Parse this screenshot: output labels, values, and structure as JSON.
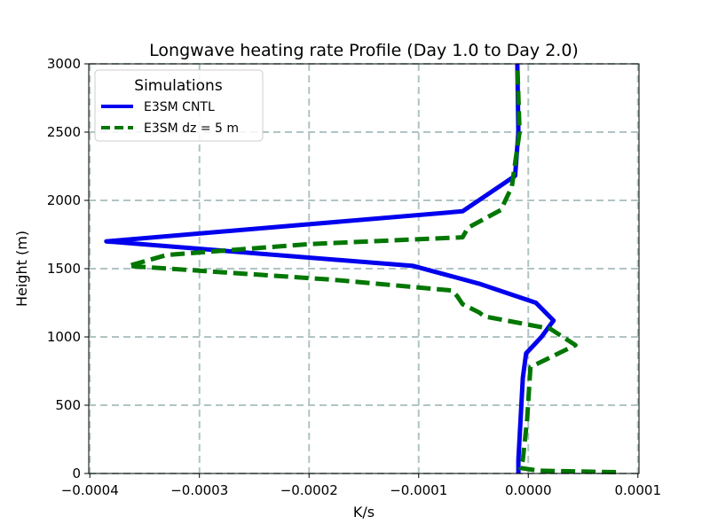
{
  "chart_data": {
    "type": "line",
    "title": "Longwave heating rate Profile (Day 1.0 to Day 2.0)",
    "xlabel": "K/s",
    "ylabel": "Height (m)",
    "xlim": [
      -0.000401,
      0.000101
    ],
    "ylim": [
      0,
      3000
    ],
    "grid": true,
    "x_ticks": [
      -0.0004,
      -0.0003,
      -0.0002,
      -0.0001,
      0.0,
      0.0001
    ],
    "x_tick_labels": [
      "−0.0004",
      "−0.0003",
      "−0.0002",
      "−0.0001",
      "0.0000",
      "0.0001"
    ],
    "y_ticks": [
      0,
      500,
      1000,
      1500,
      2000,
      2500,
      3000
    ],
    "y_tick_labels": [
      "0",
      "500",
      "1000",
      "1500",
      "2000",
      "2500",
      "3000"
    ],
    "legend": {
      "title": "Simulations",
      "position": "upper-left"
    },
    "series": [
      {
        "name": "E3SM CNTL",
        "color": "#0000ee",
        "style": "solid",
        "points": [
          [
            -9e-06,
            0
          ],
          [
            -9e-06,
            100
          ],
          [
            -7e-06,
            400
          ],
          [
            -5e-06,
            700
          ],
          [
            -2e-06,
            880
          ],
          [
            1.2e-05,
            1000
          ],
          [
            2.3e-05,
            1120
          ],
          [
            7e-06,
            1250
          ],
          [
            -4.5e-05,
            1390
          ],
          [
            -0.000105,
            1520
          ],
          [
            -0.000385,
            1700
          ],
          [
            -6e-05,
            1920
          ],
          [
            -1.2e-05,
            2180
          ],
          [
            -9e-06,
            2500
          ],
          [
            -1e-05,
            3000
          ]
        ]
      },
      {
        "name": "E3SM dz = 5 m",
        "color": "#007700",
        "style": "dashed",
        "points": [
          [
            8e-05,
            10
          ],
          [
            1e-05,
            20
          ],
          [
            -7e-06,
            40
          ],
          [
            -5e-06,
            100
          ],
          [
            -1e-06,
            400
          ],
          [
            2e-06,
            780
          ],
          [
            2e-05,
            850
          ],
          [
            4.3e-05,
            940
          ],
          [
            2e-05,
            1060
          ],
          [
            -4e-05,
            1150
          ],
          [
            -4.5e-05,
            1180
          ],
          [
            -6e-05,
            1240
          ],
          [
            -6.5e-05,
            1300
          ],
          [
            -7e-05,
            1340
          ],
          [
            -0.00018,
            1420
          ],
          [
            -0.000365,
            1520
          ],
          [
            -0.00033,
            1600
          ],
          [
            -0.0002,
            1680
          ],
          [
            -6e-05,
            1730
          ],
          [
            -5.5e-05,
            1800
          ],
          [
            -2.5e-05,
            1930
          ],
          [
            -1.5e-05,
            2100
          ],
          [
            -8e-06,
            2500
          ],
          [
            -1e-05,
            3000
          ]
        ]
      }
    ]
  }
}
